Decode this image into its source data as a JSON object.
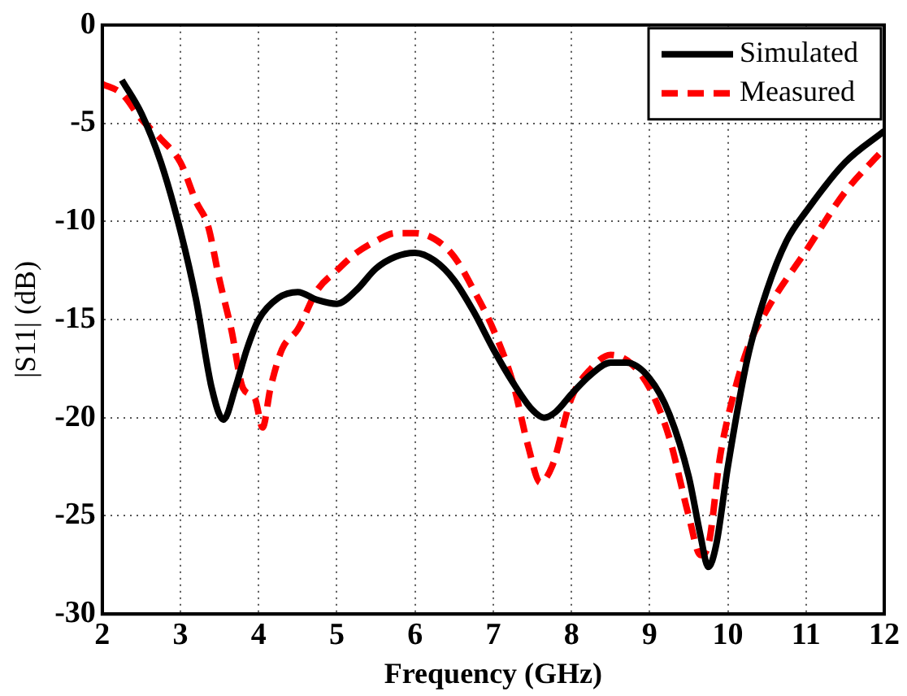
{
  "chart_data": {
    "type": "line",
    "xlabel": "Frequency (GHz)",
    "ylabel": "|S11| (dB)",
    "xlim": [
      2,
      12
    ],
    "xticks": [
      2,
      3,
      4,
      5,
      6,
      7,
      8,
      9,
      10,
      11,
      12
    ],
    "ylim": [
      -30,
      0
    ],
    "yticks": [
      -30,
      -25,
      -20,
      -15,
      -10,
      -5,
      0
    ],
    "grid": true,
    "legend": "top right",
    "marker": "none",
    "series": [
      {
        "name": "Simulated",
        "color": "#000000",
        "line_style": "solid",
        "x": [
          2.25,
          2.5,
          2.75,
          3.0,
          3.2,
          3.4,
          3.55,
          3.7,
          3.85,
          4.0,
          4.25,
          4.5,
          4.75,
          5.0,
          5.25,
          5.5,
          5.75,
          6.0,
          6.25,
          6.5,
          6.75,
          7.0,
          7.25,
          7.5,
          7.65,
          7.8,
          8.0,
          8.25,
          8.5,
          8.7,
          9.0,
          9.25,
          9.5,
          9.65,
          9.75,
          9.85,
          10.0,
          10.25,
          10.5,
          10.75,
          11.0,
          11.5,
          12.0
        ],
        "values": [
          -2.8,
          -4.5,
          -7,
          -10.5,
          -14,
          -18.5,
          -20.1,
          -18.5,
          -16.5,
          -15,
          -13.9,
          -13.6,
          -14,
          -14.2,
          -13.5,
          -12.4,
          -11.8,
          -11.6,
          -12,
          -13,
          -14.6,
          -16.5,
          -18.2,
          -19.6,
          -20,
          -19.7,
          -18.8,
          -17.8,
          -17.2,
          -17.2,
          -18,
          -19.8,
          -23,
          -26,
          -27.6,
          -26.5,
          -22.5,
          -17,
          -13.5,
          -11,
          -9.5,
          -7,
          -5.4
        ]
      },
      {
        "name": "Measured",
        "color": "#ff0000",
        "line_style": "dashed",
        "x": [
          2.0,
          2.25,
          2.5,
          2.75,
          3.0,
          3.2,
          3.35,
          3.5,
          3.65,
          3.8,
          3.95,
          4.05,
          4.15,
          4.3,
          4.5,
          4.75,
          5.0,
          5.25,
          5.5,
          5.75,
          6.0,
          6.25,
          6.5,
          6.75,
          7.0,
          7.25,
          7.45,
          7.6,
          7.75,
          8.0,
          8.25,
          8.5,
          8.75,
          9.0,
          9.25,
          9.5,
          9.65,
          9.75,
          9.9,
          10.0,
          10.25,
          10.5,
          11.0,
          11.5,
          12.0
        ],
        "values": [
          -3,
          -3.5,
          -4.8,
          -5.8,
          -7,
          -9,
          -10.2,
          -13,
          -15.5,
          -18.5,
          -19,
          -20.5,
          -18.5,
          -16.5,
          -15.5,
          -13.5,
          -12.5,
          -11.6,
          -11,
          -10.6,
          -10.6,
          -10.9,
          -11.8,
          -13.5,
          -15.5,
          -18.2,
          -21.5,
          -23.3,
          -22.5,
          -19,
          -17.5,
          -16.8,
          -17.2,
          -18.5,
          -21,
          -25,
          -27,
          -26.5,
          -22,
          -20,
          -16.5,
          -14.5,
          -11.5,
          -8.5,
          -6.3
        ]
      }
    ]
  }
}
